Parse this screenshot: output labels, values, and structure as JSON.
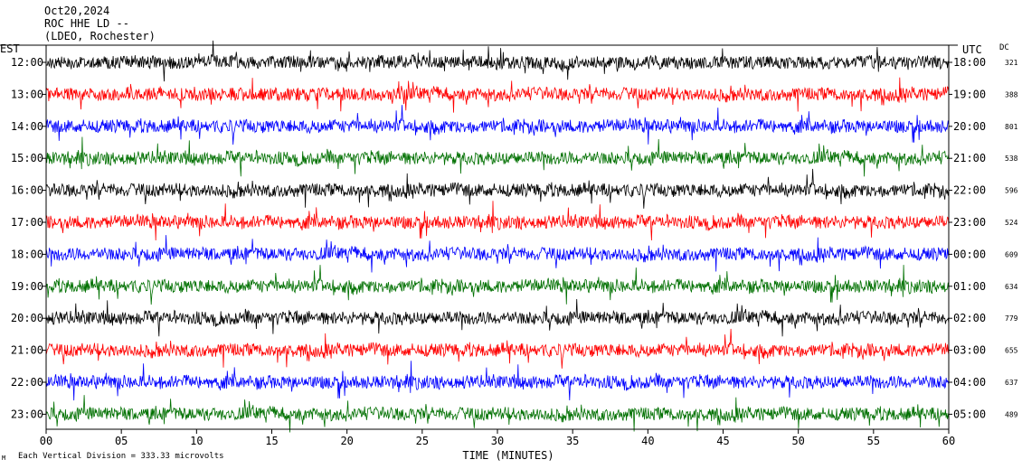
{
  "header": {
    "date": "Oct20,2024",
    "station": "ROC HHE LD --",
    "location": "(LDEO, Rochester)"
  },
  "left_axis_label": "EST",
  "right_axis_label": "UTC",
  "dc_label": "DC",
  "footer": {
    "logo_text": "M",
    "scale_text": "Each Vertical Division = 333.33 microvolts"
  },
  "colors": {
    "trace_cycle": [
      "#000000",
      "#ff0000",
      "#0000ff",
      "#007000"
    ],
    "axes": "#000000",
    "background": "#ffffff"
  },
  "chart_data": {
    "type": "line",
    "subtype": "helicorder",
    "xlabel": "TIME (MINUTES)",
    "xlim": [
      0,
      60
    ],
    "xticks": [
      0,
      5,
      10,
      15,
      20,
      25,
      30,
      35,
      40,
      45,
      50,
      55,
      60
    ],
    "xtick_labels": [
      "00",
      "05",
      "10",
      "15",
      "20",
      "25",
      "30",
      "35",
      "40",
      "45",
      "50",
      "55",
      "60"
    ],
    "rows": [
      {
        "est": "12:00",
        "utc": "18:00",
        "dc": "321",
        "color": "#000000"
      },
      {
        "est": "13:00",
        "utc": "19:00",
        "dc": "388",
        "color": "#ff0000"
      },
      {
        "est": "14:00",
        "utc": "20:00",
        "dc": "801",
        "color": "#0000ff"
      },
      {
        "est": "15:00",
        "utc": "21:00",
        "dc": "538",
        "color": "#007000"
      },
      {
        "est": "16:00",
        "utc": "22:00",
        "dc": "596",
        "color": "#000000"
      },
      {
        "est": "17:00",
        "utc": "23:00",
        "dc": "524",
        "color": "#ff0000"
      },
      {
        "est": "18:00",
        "utc": "00:00",
        "dc": "609",
        "color": "#0000ff"
      },
      {
        "est": "19:00",
        "utc": "01:00",
        "dc": "634",
        "color": "#007000"
      },
      {
        "est": "20:00",
        "utc": "02:00",
        "dc": "779",
        "color": "#000000"
      },
      {
        "est": "21:00",
        "utc": "03:00",
        "dc": "655",
        "color": "#ff0000"
      },
      {
        "est": "22:00",
        "utc": "04:00",
        "dc": "637",
        "color": "#0000ff"
      },
      {
        "est": "23:00",
        "utc": "05:00",
        "dc": "489",
        "color": "#007000"
      }
    ]
  }
}
